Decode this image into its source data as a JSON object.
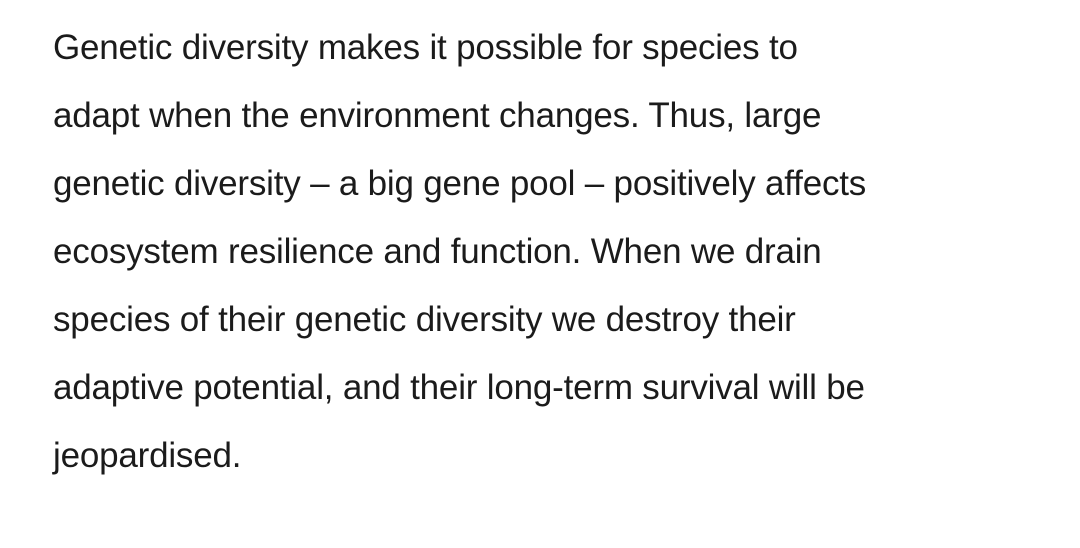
{
  "article": {
    "lines": [
      "Genetic diversity makes it possible for species to",
      "adapt when the environment changes. Thus, large",
      "genetic diversity – a big gene pool – positively affects",
      "ecosystem resilience and function. When we drain",
      "species of their genetic diversity we destroy their",
      "adaptive potential, and their long-term survival will be",
      "jeopardised."
    ]
  }
}
